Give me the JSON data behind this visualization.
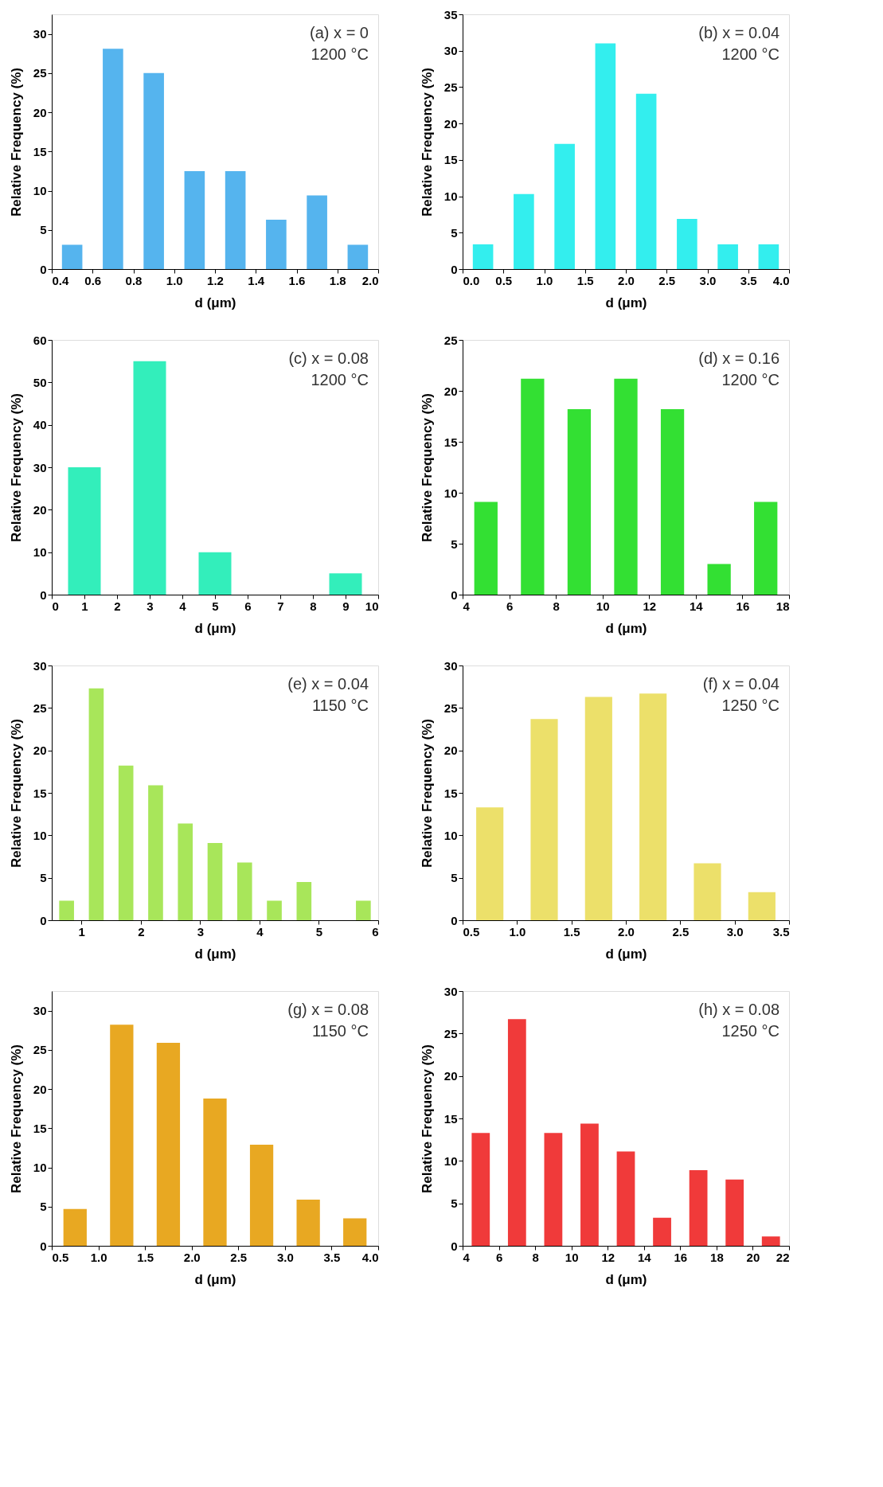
{
  "chart_data": [
    {
      "type": "bar",
      "annotations": [
        "(a) x = 0",
        "1200 °C"
      ],
      "xlabel": "d (μm)",
      "ylabel": "Relative Frequency (%)",
      "color": "#55b4ee",
      "x": [
        0.5,
        0.7,
        0.9,
        1.1,
        1.3,
        1.5,
        1.7,
        1.9
      ],
      "values": [
        3.1,
        28.1,
        25.0,
        12.5,
        12.5,
        6.3,
        9.4,
        3.1
      ],
      "xlim": [
        0.4,
        2.0
      ],
      "xticks": [
        0.4,
        0.6,
        0.8,
        {
          "value": 1,
          "label": "1.0"
        },
        1.2,
        1.4,
        1.6,
        1.8,
        {
          "value": 2,
          "label": "2.0"
        }
      ],
      "ylim": [
        0,
        32.5
      ],
      "yticks": [
        0,
        5,
        10,
        15,
        20,
        25,
        30
      ],
      "grid": false
    },
    {
      "type": "bar",
      "annotations": [
        "(b) x = 0.04",
        "1200 °C"
      ],
      "xlabel": "d (μm)",
      "ylabel": "Relative Frequency (%)",
      "color": "#33eeee",
      "x": [
        0.25,
        0.75,
        1.25,
        1.75,
        2.25,
        2.75,
        3.25,
        3.75
      ],
      "values": [
        3.4,
        10.3,
        17.2,
        31.0,
        24.1,
        6.9,
        3.4,
        3.4
      ],
      "xlim": [
        0,
        4
      ],
      "xticks": [
        {
          "value": 0,
          "label": "0.0"
        },
        0.5,
        {
          "value": 1,
          "label": "1.0"
        },
        1.5,
        {
          "value": 2,
          "label": "2.0"
        },
        2.5,
        {
          "value": 3,
          "label": "3.0"
        },
        3.5,
        {
          "value": 4,
          "label": "4.0"
        }
      ],
      "ylim": [
        0,
        35
      ],
      "yticks": [
        0,
        5,
        10,
        15,
        20,
        25,
        30,
        35
      ],
      "grid": false
    },
    {
      "type": "bar",
      "annotations": [
        "(c) x = 0.08",
        "1200 °C"
      ],
      "xlabel": "d (μm)",
      "ylabel": "Relative Frequency (%)",
      "color": "#33eebb",
      "x": [
        1,
        3,
        5,
        9
      ],
      "values": [
        30,
        55,
        10,
        5
      ],
      "xlim": [
        0,
        10
      ],
      "xticks": [
        0,
        1,
        2,
        3,
        4,
        5,
        6,
        7,
        8,
        9,
        10
      ],
      "ylim": [
        0,
        60
      ],
      "yticks": [
        0,
        10,
        20,
        30,
        40,
        50,
        60
      ],
      "grid": false
    },
    {
      "type": "bar",
      "annotations": [
        "(d) x = 0.16",
        "1200 °C"
      ],
      "xlabel": "d (μm)",
      "ylabel": "Relative Frequency (%)",
      "color": "#33e033",
      "x": [
        5,
        7,
        9,
        11,
        13,
        15,
        17
      ],
      "values": [
        9.1,
        21.2,
        18.2,
        21.2,
        18.2,
        3.0,
        9.1
      ],
      "xlim": [
        4,
        18
      ],
      "xticks": [
        4,
        6,
        8,
        10,
        12,
        14,
        16,
        18
      ],
      "ylim": [
        0,
        25
      ],
      "yticks": [
        0,
        5,
        10,
        15,
        20,
        25
      ],
      "grid": false
    },
    {
      "type": "bar",
      "annotations": [
        "(e) x = 0.04",
        "1150 °C"
      ],
      "xlabel": "d (μm)",
      "ylabel": "Relative Frequency (%)",
      "color": "#a8e65a",
      "x": [
        0.75,
        1.25,
        1.75,
        2.25,
        2.75,
        3.25,
        3.75,
        4.25,
        4.75,
        5.75
      ],
      "values": [
        2.3,
        27.3,
        18.2,
        15.9,
        11.4,
        9.1,
        6.8,
        2.3,
        4.5,
        2.3
      ],
      "xlim": [
        0.5,
        6
      ],
      "xticks": [
        1,
        2,
        3,
        4,
        5,
        6
      ],
      "ylim": [
        0,
        30
      ],
      "yticks": [
        0,
        5,
        10,
        15,
        20,
        25,
        30
      ],
      "grid": false
    },
    {
      "type": "bar",
      "annotations": [
        "(f) x = 0.04",
        "1250 °C"
      ],
      "xlabel": "d (μm)",
      "ylabel": "Relative Frequency (%)",
      "color": "#ece06a",
      "x": [
        0.75,
        1.25,
        1.75,
        2.25,
        2.75,
        3.25
      ],
      "values": [
        13.3,
        23.7,
        26.3,
        26.7,
        6.7,
        3.3
      ],
      "xlim": [
        0.5,
        3.5
      ],
      "xticks": [
        0.5,
        {
          "value": 1,
          "label": "1.0"
        },
        1.5,
        {
          "value": 2,
          "label": "2.0"
        },
        2.5,
        {
          "value": 3,
          "label": "3.0"
        },
        3.5
      ],
      "ylim": [
        0,
        30
      ],
      "yticks": [
        0,
        5,
        10,
        15,
        20,
        25,
        30
      ],
      "grid": false
    },
    {
      "type": "bar",
      "annotations": [
        "(g) x = 0.08",
        "1150 °C"
      ],
      "xlabel": "d (μm)",
      "ylabel": "Relative Frequency (%)",
      "color": "#e8a822",
      "x": [
        0.75,
        1.25,
        1.75,
        2.25,
        2.75,
        3.25,
        3.75
      ],
      "values": [
        4.7,
        28.2,
        25.9,
        18.8,
        12.9,
        5.9,
        3.5
      ],
      "xlim": [
        0.5,
        4
      ],
      "xticks": [
        0.5,
        {
          "value": 1,
          "label": "1.0"
        },
        1.5,
        {
          "value": 2,
          "label": "2.0"
        },
        2.5,
        {
          "value": 3,
          "label": "3.0"
        },
        3.5,
        {
          "value": 4,
          "label": "4.0"
        }
      ],
      "ylim": [
        0,
        32.5
      ],
      "yticks": [
        0,
        5,
        10,
        15,
        20,
        25,
        30
      ],
      "grid": false
    },
    {
      "type": "bar",
      "annotations": [
        "(h) x = 0.08",
        "1250 °C"
      ],
      "xlabel": "d (μm)",
      "ylabel": "Relative Frequency (%)",
      "color": "#f03a3a",
      "x": [
        5,
        7,
        9,
        11,
        13,
        15,
        17,
        19,
        21
      ],
      "values": [
        13.3,
        26.7,
        13.3,
        14.4,
        11.1,
        3.3,
        8.9,
        7.8,
        1.1
      ],
      "xlim": [
        4,
        22
      ],
      "xticks": [
        4,
        6,
        8,
        10,
        12,
        14,
        16,
        18,
        20,
        22
      ],
      "ylim": [
        0,
        30
      ],
      "yticks": [
        0,
        5,
        10,
        15,
        20,
        25,
        30
      ],
      "grid": false
    }
  ]
}
